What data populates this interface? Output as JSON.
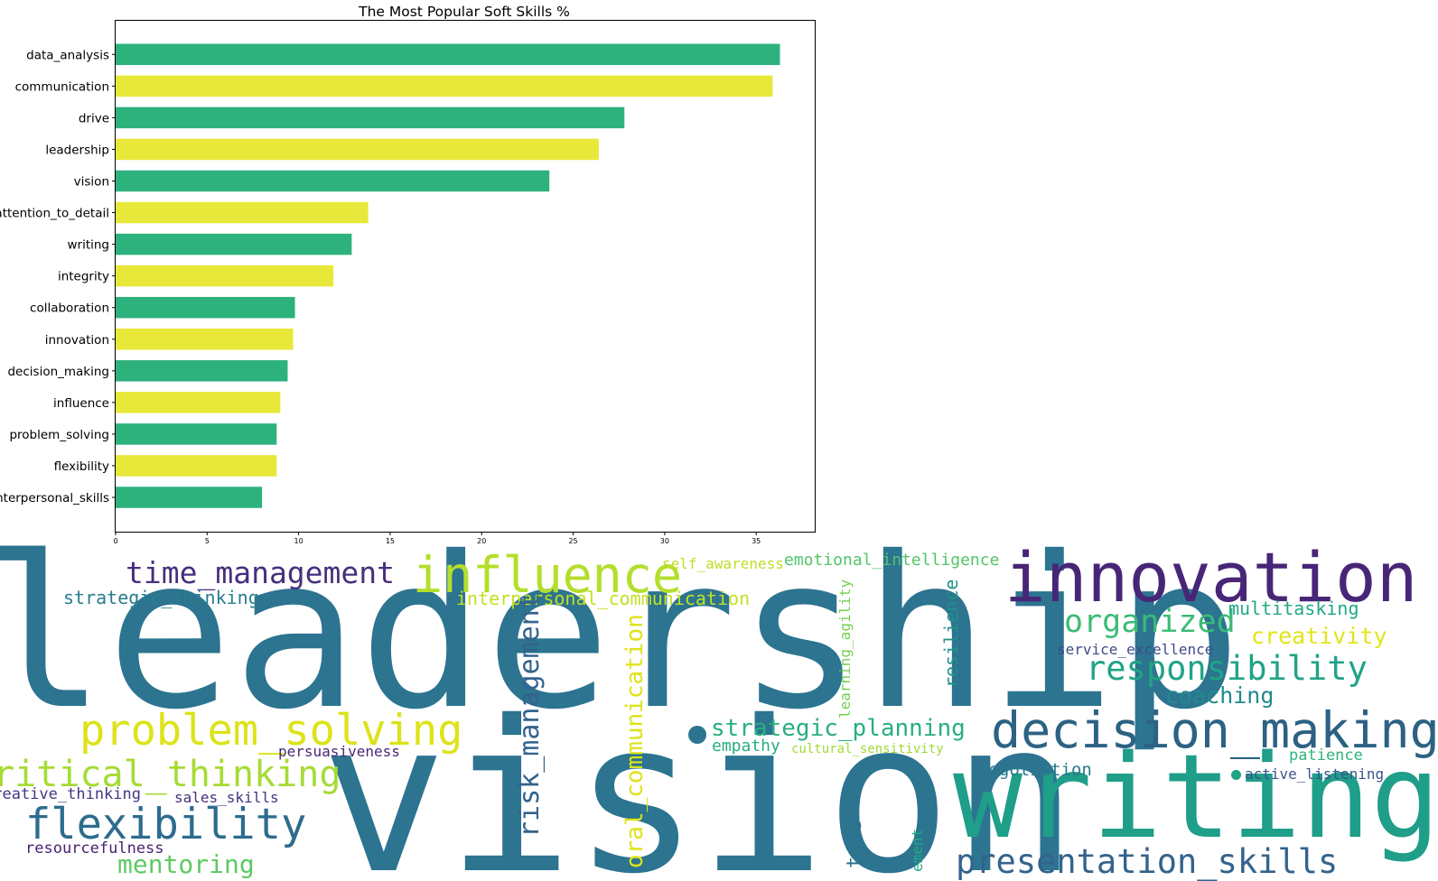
{
  "chart_data": {
    "type": "bar",
    "orientation": "horizontal",
    "title": "The Most Popular Soft Skills %",
    "xlabel": "",
    "ylabel": "",
    "xlim": [
      0,
      38.2
    ],
    "xticks": [
      "0",
      "5",
      "10",
      "15",
      "20",
      "25",
      "30",
      "35"
    ],
    "grid": false,
    "categories": [
      "data_analysis",
      "communication",
      "drive",
      "leadership",
      "vision",
      "attention_to_detail",
      "writing",
      "integrity",
      "collaboration",
      "innovation",
      "decision_making",
      "influence",
      "problem_solving",
      "flexibility",
      "interpersonal_skills"
    ],
    "values": [
      36.3,
      35.9,
      27.8,
      26.4,
      23.7,
      13.8,
      12.9,
      11.9,
      9.8,
      9.7,
      9.4,
      9.0,
      8.8,
      8.8,
      8.0
    ],
    "colors": [
      "#2db27d",
      "#e8e83a"
    ]
  },
  "word_cloud": {
    "words": [
      {
        "text": "leadership",
        "color": "#2c7490"
      },
      {
        "text": "vision",
        "color": "#2c7490"
      },
      {
        "text": "writing",
        "color": "#1f9e89"
      },
      {
        "text": "innovation",
        "color": "#482677"
      },
      {
        "text": "decision_making",
        "color": "#2c6283"
      },
      {
        "text": "influence",
        "color": "#b4de2c"
      },
      {
        "text": "problem_solving",
        "color": "#dce319"
      },
      {
        "text": "critical_thinking",
        "color": "#a6db35"
      },
      {
        "text": "flexibility",
        "color": "#2d6c8e"
      },
      {
        "text": "time_management",
        "color": "#472f7d"
      },
      {
        "text": "responsibility",
        "color": "#20a386"
      },
      {
        "text": "organized",
        "color": "#3bbb75"
      },
      {
        "text": "presentation_skills",
        "color": "#33638d"
      },
      {
        "text": "strategic_planning",
        "color": "#29af7f"
      },
      {
        "text": "creativity",
        "color": "#e3e418"
      },
      {
        "text": "coaching",
        "color": "#238a8d"
      },
      {
        "text": "multitasking",
        "color": "#22a884"
      },
      {
        "text": "strategic_thinking",
        "color": "#287d8e"
      },
      {
        "text": "interpersonal_communication",
        "color": "#c2df23"
      },
      {
        "text": "emotional_intelligence",
        "color": "#52c569"
      },
      {
        "text": "self_awareness",
        "color": "#bddf26"
      },
      {
        "text": "service_excellence",
        "color": "#3e4a89"
      },
      {
        "text": "empathy",
        "color": "#27ad81"
      },
      {
        "text": "cultural_sensitivity",
        "color": "#a2da37"
      },
      {
        "text": "persuasiveness",
        "color": "#482878"
      },
      {
        "text": "negotiation",
        "color": "#2a788e"
      },
      {
        "text": "patience",
        "color": "#2fb47c"
      },
      {
        "text": "active_listening",
        "color": "#3a538b"
      },
      {
        "text": "creative_thinking",
        "color": "#453781"
      },
      {
        "text": "sales_skills",
        "color": "#46327e"
      },
      {
        "text": "resourcefulness",
        "color": "#481f70"
      },
      {
        "text": "mentoring",
        "color": "#5ec962"
      },
      {
        "text": "risk_management",
        "color": "#33638d"
      },
      {
        "text": "oral_communication",
        "color": "#dde318"
      },
      {
        "text": "learning_agility",
        "color": "#75d054"
      },
      {
        "text": "resilience",
        "color": "#21918c"
      },
      {
        "text": "tude",
        "color": "#2c728e"
      },
      {
        "text": "ement",
        "color": "#22a884"
      }
    ]
  }
}
